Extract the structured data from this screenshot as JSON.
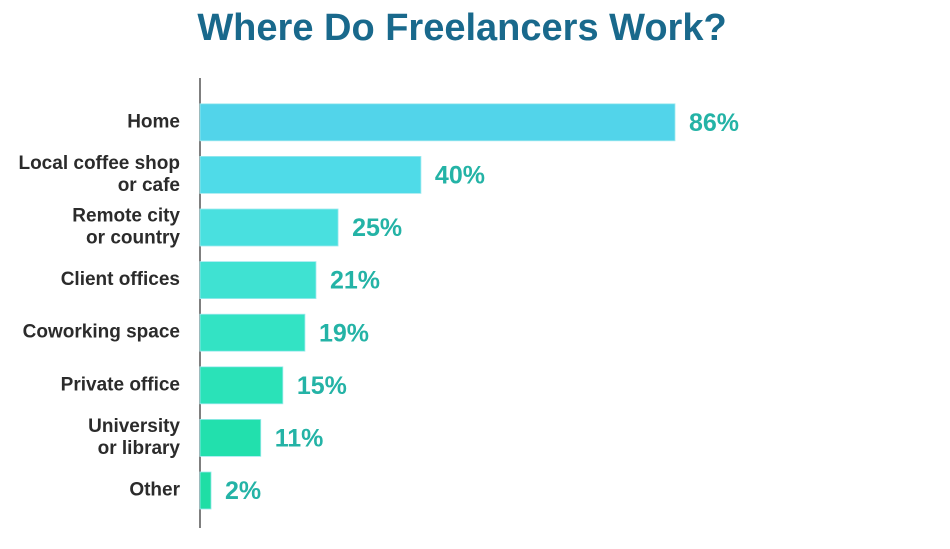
{
  "chart_data": {
    "type": "bar",
    "orientation": "horizontal",
    "title": "Where Do Freelancers Work?",
    "categories": [
      "Home",
      "Local coffee shop\nor cafe",
      "Remote city\nor country",
      "Client offices",
      "Coworking space",
      "Private office",
      "University\nor library",
      "Other"
    ],
    "values": [
      86,
      40,
      25,
      21,
      19,
      15,
      11,
      2
    ],
    "value_labels": [
      "86%",
      "40%",
      "25%",
      "21%",
      "19%",
      "15%",
      "11%",
      "2%"
    ],
    "colors": [
      "#52d4ea",
      "#4fdbe8",
      "#49e0df",
      "#3fe2d2",
      "#33e3c4",
      "#2ae2b8",
      "#22e0ad",
      "#1fdea5"
    ],
    "grid": false
  }
}
